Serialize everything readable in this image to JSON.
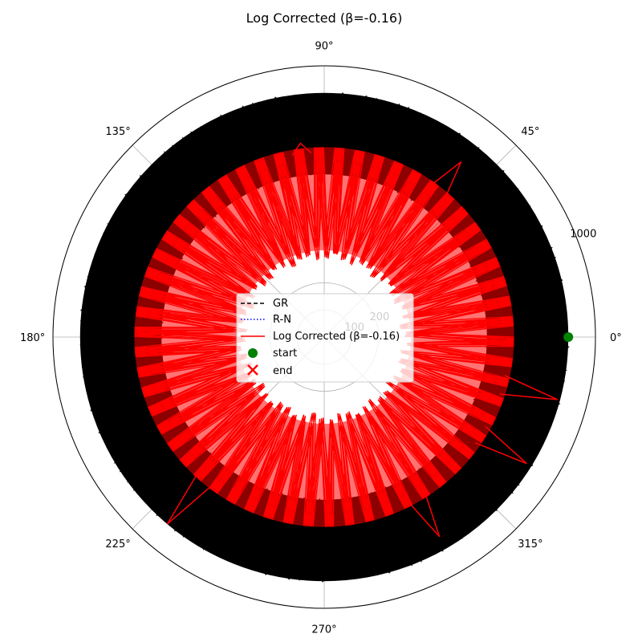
{
  "chart_data": {
    "type": "polar-line",
    "title": "Log Corrected (β=-0.16)",
    "theta_ticks": [
      "0°",
      "45°",
      "90°",
      "135°",
      "180°",
      "225°",
      "270°",
      "315°"
    ],
    "r_tick_labels": [
      "100",
      "200",
      "1000"
    ],
    "r_tick_values": [
      100,
      200,
      1000
    ],
    "legend_position": "center",
    "series": [
      {
        "name": "GR",
        "style": "dashed",
        "color": "#000000",
        "r_min": 600,
        "r_max": 900,
        "theta_step_deg": 2.2
      },
      {
        "name": "R-N",
        "style": "dotted",
        "color": "#0000ff"
      },
      {
        "name": "Log Corrected (β=-0.16)",
        "style": "solid",
        "color": "#ff0000",
        "r_min": 280,
        "r_max": 700,
        "theta_step_deg": 3.1,
        "spikes": [
          {
            "theta": -15,
            "r": 890
          },
          {
            "theta": -32,
            "r": 880
          },
          {
            "theta": 52,
            "r": 820
          },
          {
            "theta": 97,
            "r": 720
          },
          {
            "theta": -60,
            "r": 850
          },
          {
            "theta": 230,
            "r": 900
          }
        ]
      }
    ],
    "markers": [
      {
        "name": "start",
        "color": "#008000",
        "shape": "circle",
        "theta": 0,
        "r": 900
      },
      {
        "name": "end",
        "color": "#ff0000",
        "shape": "x"
      }
    ]
  }
}
